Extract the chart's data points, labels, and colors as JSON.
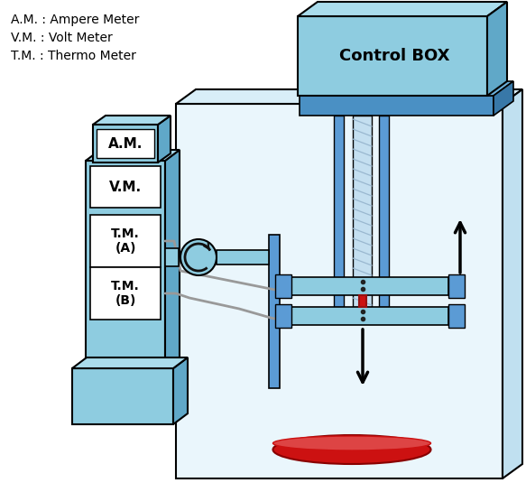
{
  "legend_lines": [
    "A.M. : Ampere Meter",
    "V.M. : Volt Meter",
    "T.M. : Thermo Meter"
  ],
  "control_box_label": "Control BOX",
  "colors": {
    "lt_blue": "#8ec8e0",
    "lt_blue2": "#a8d8ea",
    "md_blue": "#4a90c4",
    "dk_blue": "#2e6fa3",
    "bg_box": "#ddf0f8",
    "panel_bg": "#c8e4f2",
    "white": "#ffffff",
    "red_hot": "#cc1111",
    "gray_wire": "#aaaaaa",
    "black": "#000000",
    "hatch_col": "#9ab8d0"
  },
  "fig_w": 5.83,
  "fig_h": 5.45
}
